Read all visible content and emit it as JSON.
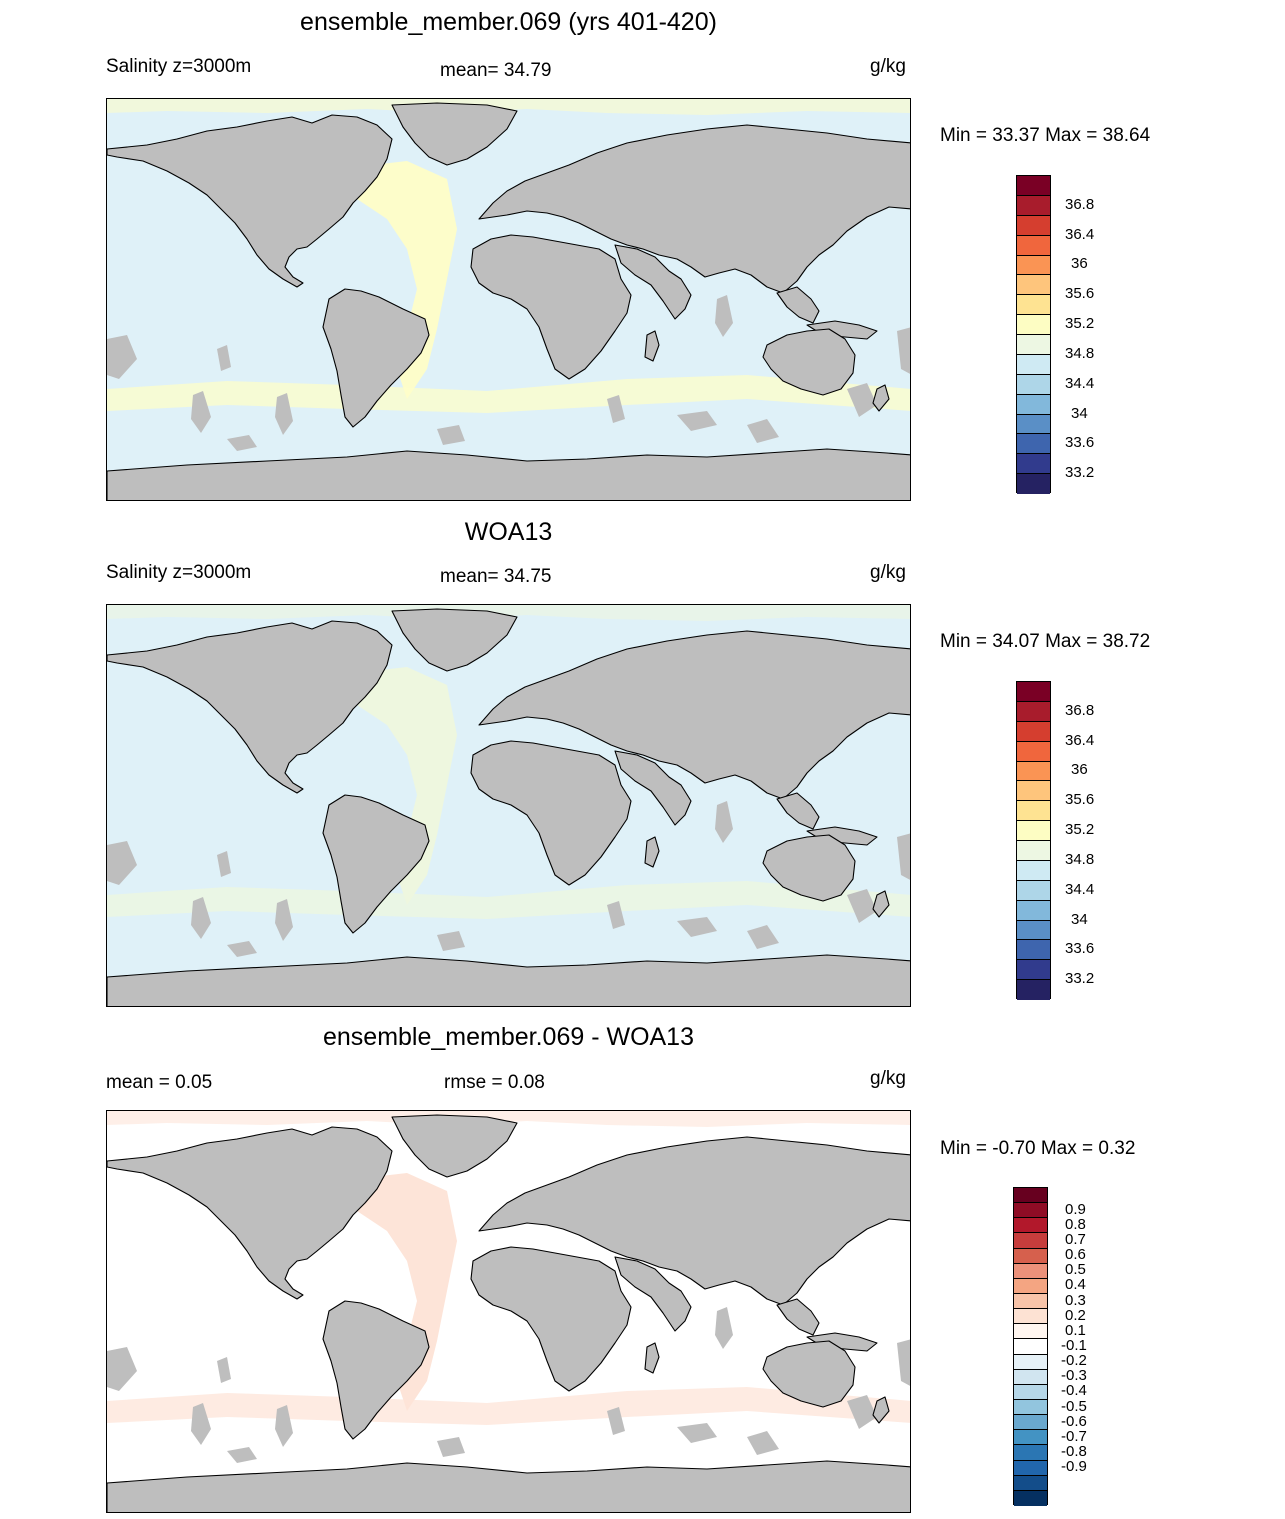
{
  "panels": [
    {
      "title": "ensemble_member.069 (yrs 401-420)",
      "left_label": "Salinity z=3000m",
      "center_label": "mean=  34.79",
      "units": "g/kg",
      "minmax": "Min =  33.37 Max =  38.64",
      "ocean_color": "#dff1f8",
      "band_color": "#fdfdca",
      "colorbar_colors": [
        "#7a0025",
        "#a81c2c",
        "#d53e2f",
        "#f0663d",
        "#fa9454",
        "#fec57c",
        "#fee392",
        "#fdfdc3",
        "#edf7e3",
        "#cfeaf3",
        "#aed6e8",
        "#82b8db",
        "#5a8fc6",
        "#3e65ae",
        "#313b8d",
        "#252262"
      ],
      "colorbar_labels": [
        "36.8",
        "36.4",
        "36",
        "35.6",
        "35.2",
        "34.8",
        "34.4",
        "34",
        "33.6",
        "33.2"
      ]
    },
    {
      "title": "WOA13",
      "left_label": "Salinity z=3000m",
      "center_label": "mean=  34.75",
      "units": "g/kg",
      "minmax": "Min =  34.07 Max =  38.72",
      "ocean_color": "#dff1f8",
      "band_color": "#eef7df",
      "colorbar_colors": [
        "#7a0025",
        "#a81c2c",
        "#d53e2f",
        "#f0663d",
        "#fa9454",
        "#fec57c",
        "#fee392",
        "#fdfdc3",
        "#edf7e3",
        "#cfeaf3",
        "#aed6e8",
        "#82b8db",
        "#5a8fc6",
        "#3e65ae",
        "#313b8d",
        "#252262"
      ],
      "colorbar_labels": [
        "36.8",
        "36.4",
        "36",
        "35.6",
        "35.2",
        "34.8",
        "34.4",
        "34",
        "33.6",
        "33.2"
      ]
    },
    {
      "title": "ensemble_member.069 - WOA13",
      "left_label": "mean =   0.05",
      "center_label": "rmse =   0.08",
      "units": "g/kg",
      "minmax": "Min =  -0.70 Max =   0.32",
      "ocean_color": "#ffffff",
      "band_color": "#fde4d8",
      "colorbar_colors": [
        "#67001f",
        "#8f0c25",
        "#b2182b",
        "#c73d3c",
        "#d6604d",
        "#ec917a",
        "#f4a582",
        "#f8c4a9",
        "#fde2d3",
        "#fff6f0",
        "#ffffff",
        "#e6f1f7",
        "#d1e5f0",
        "#b6d7e8",
        "#92c5de",
        "#6aa8ce",
        "#4393c3",
        "#2b76b3",
        "#2166ac",
        "#134d8a",
        "#053061"
      ],
      "colorbar_labels": [
        "0.9",
        "0.8",
        "0.7",
        "0.6",
        "0.5",
        "0.4",
        "0.3",
        "0.2",
        "0.1",
        "-0.1",
        "-0.2",
        "-0.3",
        "-0.4",
        "-0.5",
        "-0.6",
        "-0.7",
        "-0.8",
        "-0.9"
      ]
    }
  ],
  "land_color": "#bebebe"
}
